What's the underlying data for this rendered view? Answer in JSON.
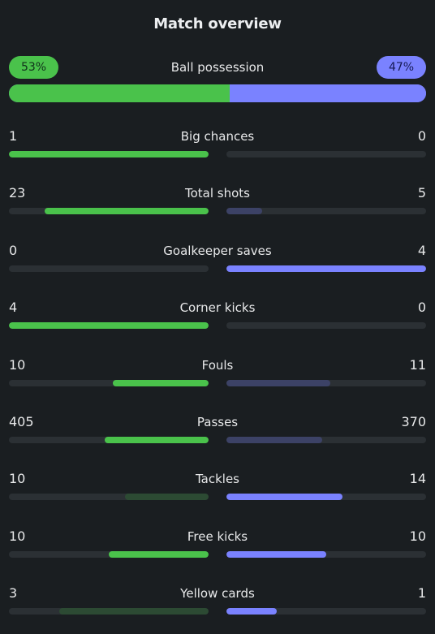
{
  "header": {
    "title": "Match overview"
  },
  "possession": {
    "label": "Ball possession",
    "home_pct_label": "53%",
    "away_pct_label": "47%",
    "home": 53,
    "away": 47,
    "home_color": "#4ac24b",
    "away_color": "#7a82ff"
  },
  "colors": {
    "home_strong": "#4ac24b",
    "home_weak": "#2c4a33",
    "away_strong": "#7a82ff",
    "away_weak": "#3c4266",
    "track": "#2b3034"
  },
  "stats": [
    {
      "label": "Big chances",
      "home": "1",
      "away": "0",
      "home_fraction": 1.0,
      "away_fraction": 0.0,
      "home_style": "strong",
      "away_style": "weak"
    },
    {
      "label": "Total shots",
      "home": "23",
      "away": "5",
      "home_fraction": 0.82,
      "away_fraction": 0.18,
      "home_style": "strong",
      "away_style": "weak"
    },
    {
      "label": "Goalkeeper saves",
      "home": "0",
      "away": "4",
      "home_fraction": 0.0,
      "away_fraction": 1.0,
      "home_style": "weak",
      "away_style": "strong"
    },
    {
      "label": "Corner kicks",
      "home": "4",
      "away": "0",
      "home_fraction": 1.0,
      "away_fraction": 0.0,
      "home_style": "strong",
      "away_style": "weak"
    },
    {
      "label": "Fouls",
      "home": "10",
      "away": "11",
      "home_fraction": 0.48,
      "away_fraction": 0.52,
      "home_style": "strong",
      "away_style": "weak"
    },
    {
      "label": "Passes",
      "home": "405",
      "away": "370",
      "home_fraction": 0.52,
      "away_fraction": 0.48,
      "home_style": "strong",
      "away_style": "weak"
    },
    {
      "label": "Tackles",
      "home": "10",
      "away": "14",
      "home_fraction": 0.42,
      "away_fraction": 0.58,
      "home_style": "weak",
      "away_style": "strong"
    },
    {
      "label": "Free kicks",
      "home": "10",
      "away": "10",
      "home_fraction": 0.5,
      "away_fraction": 0.5,
      "home_style": "strong",
      "away_style": "strong"
    },
    {
      "label": "Yellow cards",
      "home": "3",
      "away": "1",
      "home_fraction": 0.75,
      "away_fraction": 0.25,
      "home_style": "weak",
      "away_style": "strong"
    }
  ]
}
